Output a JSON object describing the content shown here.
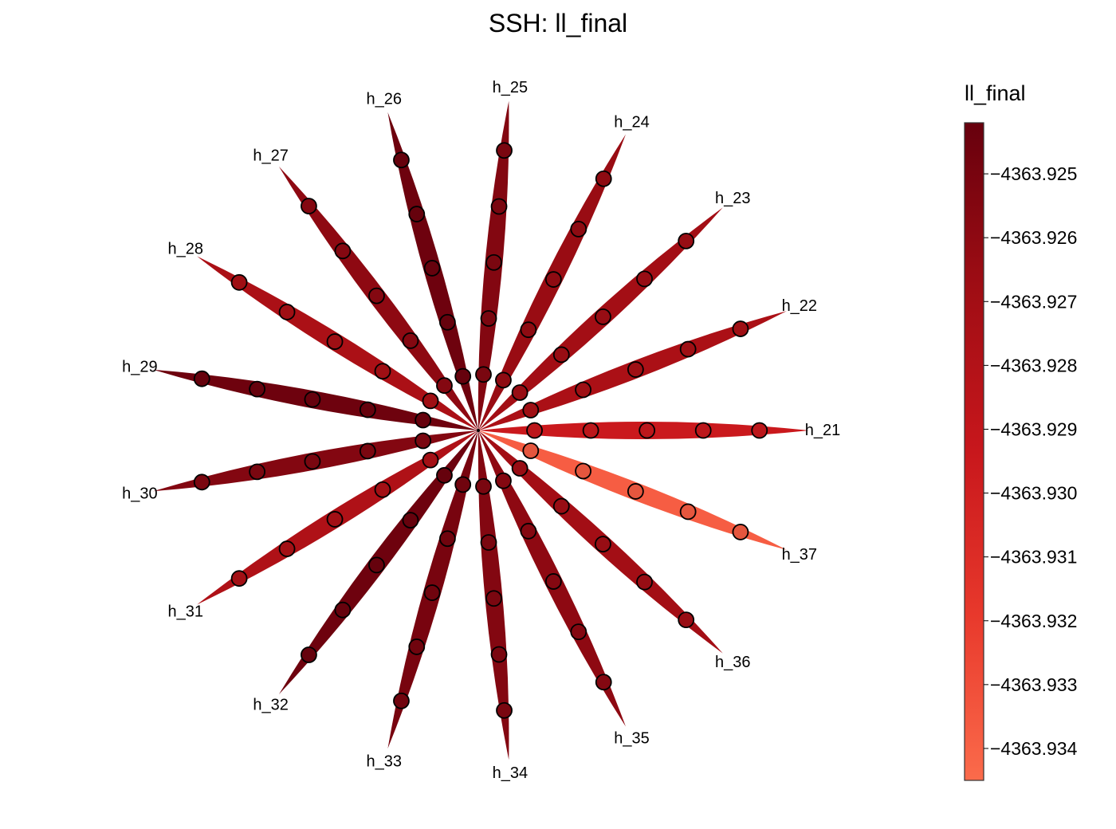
{
  "chart_data": {
    "type": "radial",
    "title": "SSH: ll_final",
    "colorbar": {
      "label": "ll_final",
      "min": -4363.9345,
      "max": -4363.9242,
      "ticks": [
        {
          "value": -4363.925,
          "label": "−4363.925"
        },
        {
          "value": -4363.926,
          "label": "−4363.926"
        },
        {
          "value": -4363.927,
          "label": "−4363.927"
        },
        {
          "value": -4363.928,
          "label": "−4363.928"
        },
        {
          "value": -4363.929,
          "label": "−4363.929"
        },
        {
          "value": -4363.93,
          "label": "−4363.930"
        },
        {
          "value": -4363.931,
          "label": "−4363.931"
        },
        {
          "value": -4363.932,
          "label": "−4363.932"
        },
        {
          "value": -4363.933,
          "label": "−4363.933"
        },
        {
          "value": -4363.934,
          "label": "−4363.934"
        }
      ],
      "colors": [
        "#fb6b4b",
        "#e8392c",
        "#c8171c",
        "#9f0d14",
        "#67000d"
      ]
    },
    "series": [
      {
        "name": "h_21",
        "value": -4363.9295
      },
      {
        "name": "h_22",
        "value": -4363.9275
      },
      {
        "name": "h_23",
        "value": -4363.927
      },
      {
        "name": "h_24",
        "value": -4363.9265
      },
      {
        "name": "h_25",
        "value": -4363.9255
      },
      {
        "name": "h_26",
        "value": -4363.9245
      },
      {
        "name": "h_27",
        "value": -4363.926
      },
      {
        "name": "h_28",
        "value": -4363.9275
      },
      {
        "name": "h_29",
        "value": -4363.9245
      },
      {
        "name": "h_30",
        "value": -4363.9255
      },
      {
        "name": "h_31",
        "value": -4363.9278
      },
      {
        "name": "h_32",
        "value": -4363.9245
      },
      {
        "name": "h_33",
        "value": -4363.925
      },
      {
        "name": "h_34",
        "value": -4363.9255
      },
      {
        "name": "h_35",
        "value": -4363.926
      },
      {
        "name": "h_36",
        "value": -4363.927
      },
      {
        "name": "h_37",
        "value": -4363.9338
      }
    ]
  }
}
